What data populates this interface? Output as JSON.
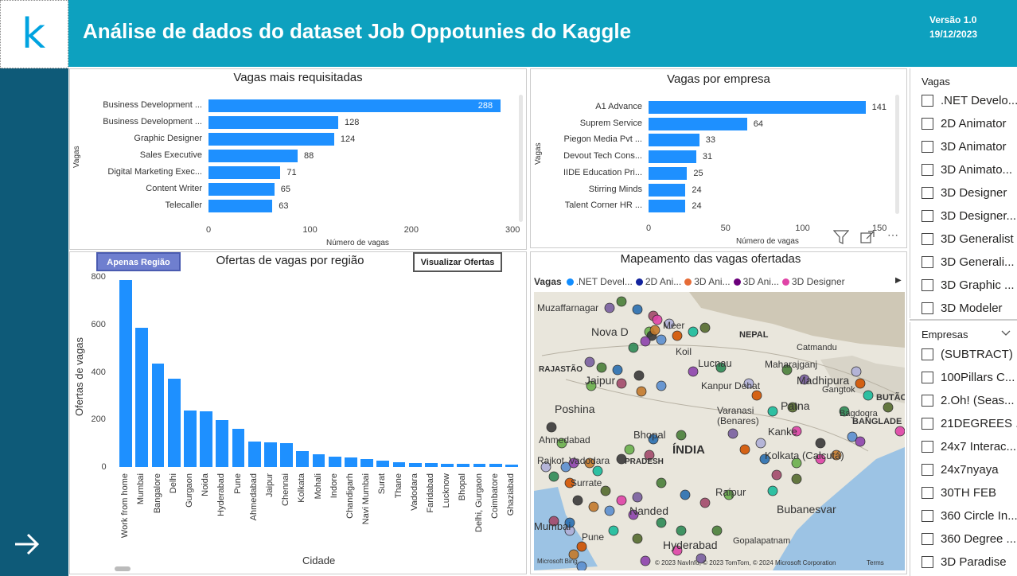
{
  "header": {
    "logo_letter": "k",
    "title": "Análise de dados do dataset Job Oppotunies do Kaggle",
    "version": "Versão 1.0",
    "date": "19/12/2023"
  },
  "chart_vagas_mais": {
    "title": "Vagas mais requisitadas",
    "ylabel": "Vagas",
    "xlabel": "Número de vagas",
    "categories": [
      "Business Development ...",
      "Business Development ...",
      "Graphic Designer",
      "Sales Executive",
      "Digital Marketing Exec...",
      "Content Writer",
      "Telecaller"
    ],
    "values": [
      "288",
      "128",
      "124",
      "88",
      "71",
      "65",
      "63"
    ],
    "ticks": [
      "0",
      "100",
      "200",
      "300"
    ]
  },
  "chart_vagas_empresa": {
    "title": "Vagas por empresa",
    "ylabel": "Vagas",
    "xlabel": "Número de vagas",
    "categories": [
      "A1 Advance",
      "Suprem Service",
      "Piegon Media Pvt ...",
      "Devout Tech Cons...",
      "IIDE Education Pri...",
      "Stirring Minds",
      "Talent Corner HR ..."
    ],
    "values": [
      "141",
      "64",
      "33",
      "31",
      "25",
      "24",
      "24"
    ],
    "ticks": [
      "0",
      "50",
      "100",
      "150"
    ]
  },
  "chart_regiao": {
    "title": "Ofertas de vagas por região",
    "ylabel": "Ofertas de vagas",
    "xlabel": "Cidade",
    "btn_regiao": "Apenas Região",
    "btn_ofertas": "Visualizar Ofertas",
    "yticks": [
      "0",
      "200",
      "400",
      "600",
      "800"
    ],
    "categories": [
      "Work from home",
      "Mumbai",
      "Bangalore",
      "Delhi",
      "Gurgaon",
      "Noida",
      "Hyderabad",
      "Pune",
      "Ahmedabad",
      "Jaipur",
      "Chennai",
      "Kolkata",
      "Mohali",
      "Indore",
      "Chandigarh",
      "Navi Mumbai",
      "Surat",
      "Thane",
      "Vadodara",
      "Faridabad",
      "Lucknow",
      "Bhopal",
      "Delhi, Gurgaon",
      "Coimbatore",
      "Ghaziabad"
    ],
    "values": [
      785,
      585,
      435,
      370,
      238,
      235,
      198,
      162,
      107,
      105,
      100,
      68,
      52,
      43,
      39,
      34,
      26,
      20,
      18,
      16,
      15,
      14,
      13,
      12,
      11
    ]
  },
  "chart_data": [
    {
      "type": "bar",
      "title": "Vagas mais requisitadas",
      "xlabel": "Número de vagas",
      "ylabel": "Vagas",
      "categories": [
        "Business Development ...",
        "Business Development ...",
        "Graphic Designer",
        "Sales Executive",
        "Digital Marketing Exec...",
        "Content Writer",
        "Telecaller"
      ],
      "values": [
        288,
        128,
        124,
        88,
        71,
        65,
        63
      ],
      "xlim": [
        0,
        300
      ]
    },
    {
      "type": "bar",
      "title": "Vagas por empresa",
      "xlabel": "Número de vagas",
      "ylabel": "Vagas",
      "categories": [
        "A1 Advance",
        "Suprem Service",
        "Piegon Media Pvt ...",
        "Devout Tech Cons...",
        "IIDE Education Pri...",
        "Stirring Minds",
        "Talent Corner HR ..."
      ],
      "values": [
        141,
        64,
        33,
        31,
        25,
        24,
        24
      ],
      "xlim": [
        0,
        150
      ]
    },
    {
      "type": "bar",
      "title": "Ofertas de vagas por região",
      "xlabel": "Cidade",
      "ylabel": "Ofertas de vagas",
      "categories": [
        "Work from home",
        "Mumbai",
        "Bangalore",
        "Delhi",
        "Gurgaon",
        "Noida",
        "Hyderabad",
        "Pune",
        "Ahmedabad",
        "Jaipur",
        "Chennai",
        "Kolkata",
        "Mohali",
        "Indore",
        "Chandigarh",
        "Navi Mumbai",
        "Surat",
        "Thane",
        "Vadodara",
        "Faridabad",
        "Lucknow",
        "Bhopal",
        "Delhi, Gurgaon",
        "Coimbatore",
        "Ghaziabad"
      ],
      "values": [
        785,
        585,
        435,
        370,
        238,
        235,
        198,
        162,
        107,
        105,
        100,
        68,
        52,
        43,
        39,
        34,
        26,
        20,
        18,
        16,
        15,
        14,
        13,
        12,
        11
      ],
      "ylim": [
        0,
        800
      ]
    }
  ],
  "map": {
    "title": "Mapeamento das vagas ofertadas",
    "legend_label": "Vagas",
    "legend": [
      {
        "name": ".NET Devel...",
        "color": "#118dff"
      },
      {
        "name": "2D Ani...",
        "color": "#12239e"
      },
      {
        "name": "3D Ani...",
        "color": "#e66c37"
      },
      {
        "name": "3D Ani...",
        "color": "#6b007b"
      },
      {
        "name": "3D Designer",
        "color": "#e044a7"
      }
    ],
    "labels": [
      "Muzaffarnagar",
      "Nova D",
      "Meer",
      "Koil",
      "NEPAL",
      "Catmandu",
      "Lucnau",
      "Maharajganj",
      "RAJASTÃO",
      "Jaipur",
      "Kanpur Dehat",
      "Madhipura",
      "Patna",
      "Poshina",
      "Varanasi",
      "(Benares)",
      "BANGLADE",
      "Ahmedabad",
      "Bhopal",
      "ÍNDIA",
      "Kanke",
      "Kolkata (Calcutá)",
      "Rajkot",
      "Vadodara",
      "PRADESH",
      "Surrate",
      "Raipur",
      "Bubanesvar",
      "Nanded",
      "Mumbai",
      "Pune",
      "Hyderabad",
      "Gopalapatnam",
      "Gangtok",
      "Bagdogra",
      "BUTÃO",
      "Microsoft Bing",
      "© 2023 NavInfo, © 2023 TomTom, © 2024 Microsoft Corporation",
      "Terms"
    ]
  },
  "slicer_vagas": {
    "title": "Vagas",
    "items": [
      ".NET Develo...",
      "2D Animator",
      "3D Animator",
      "3D Animato...",
      "3D Designer",
      "3D Designer...",
      "3D Generalist",
      "3D Generali...",
      "3D Graphic ...",
      "3D Modeler"
    ]
  },
  "slicer_empresas": {
    "title": "Empresas",
    "items": [
      "(SUBTRACT)",
      "100Pillars C...",
      "2.Oh! (Seas...",
      "21DEGREES ...",
      "24x7 Interac...",
      "24x7nyaya",
      "30TH FEB",
      "360 Circle In...",
      "360 Degree ...",
      "3D Paradise"
    ]
  },
  "icons": [
    "arrow-right-icon",
    "filter-icon",
    "focus-mode-icon",
    "more-options-icon",
    "chevron-down-icon",
    "legend-next-icon"
  ]
}
